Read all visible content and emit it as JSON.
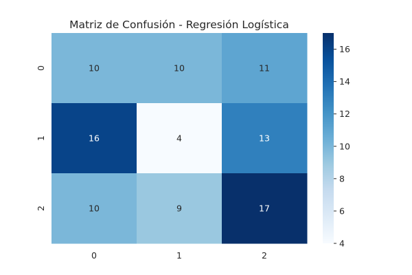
{
  "chart_data": {
    "type": "heatmap",
    "title": "Matriz de Confusión - Regresión Logística",
    "xlabel": "",
    "ylabel": "",
    "x_categories": [
      "0",
      "1",
      "2"
    ],
    "y_categories": [
      "0",
      "1",
      "2"
    ],
    "values": [
      [
        10,
        10,
        11
      ],
      [
        16,
        4,
        13
      ],
      [
        10,
        9,
        17
      ]
    ],
    "colormap": "Blues",
    "colorbar": {
      "min": 4,
      "max": 17,
      "ticks": [
        "4",
        "6",
        "8",
        "10",
        "12",
        "14",
        "16"
      ]
    },
    "annotations": true
  }
}
